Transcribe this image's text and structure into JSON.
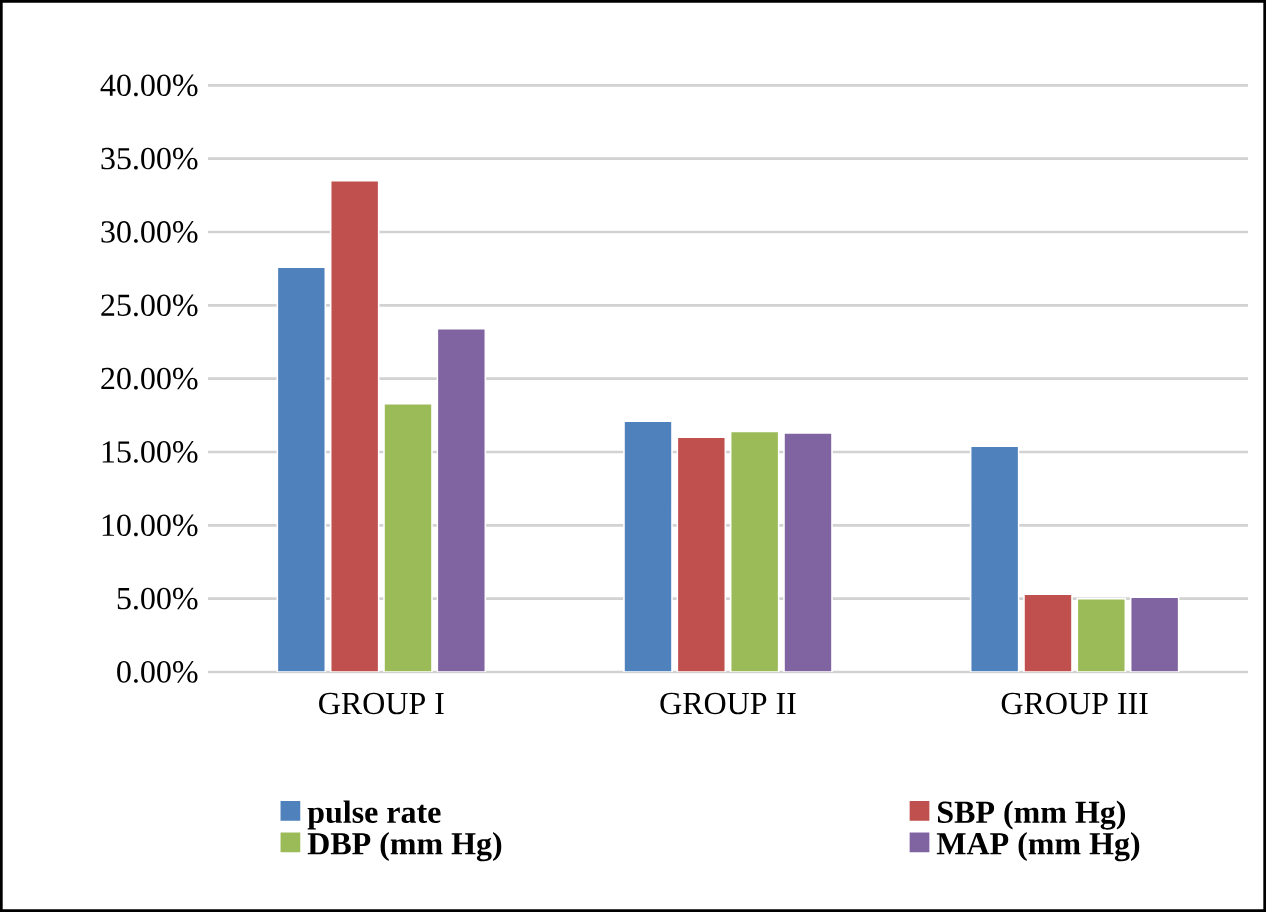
{
  "chart_data": {
    "type": "bar",
    "categories": [
      "GROUP I",
      "GROUP II",
      "GROUP III"
    ],
    "series": [
      {
        "name": "pulse rate",
        "color": "#4f81bd",
        "values": [
          27.6,
          17.1,
          15.4
        ]
      },
      {
        "name": "SBP (mm Hg)",
        "color": "#c0504d",
        "values": [
          33.5,
          16.0,
          5.3
        ]
      },
      {
        "name": "DBP (mm Hg)",
        "color": "#9bbb59",
        "values": [
          18.3,
          16.4,
          5.0
        ]
      },
      {
        "name": "MAP (mm Hg)",
        "color": "#8064a2",
        "values": [
          23.4,
          16.3,
          5.1
        ]
      }
    ],
    "ylim": [
      0,
      40
    ],
    "yticks": [
      {
        "value": 0,
        "label": "0.00%"
      },
      {
        "value": 5,
        "label": "5.00%"
      },
      {
        "value": 10,
        "label": "10.00%"
      },
      {
        "value": 15,
        "label": "15.00%"
      },
      {
        "value": 20,
        "label": "20.00%"
      },
      {
        "value": 25,
        "label": "25.00%"
      },
      {
        "value": 30,
        "label": "30.00%"
      },
      {
        "value": 35,
        "label": "35.00%"
      },
      {
        "value": 40,
        "label": "40.00%"
      }
    ],
    "grid": "y",
    "legend": "bottom"
  }
}
